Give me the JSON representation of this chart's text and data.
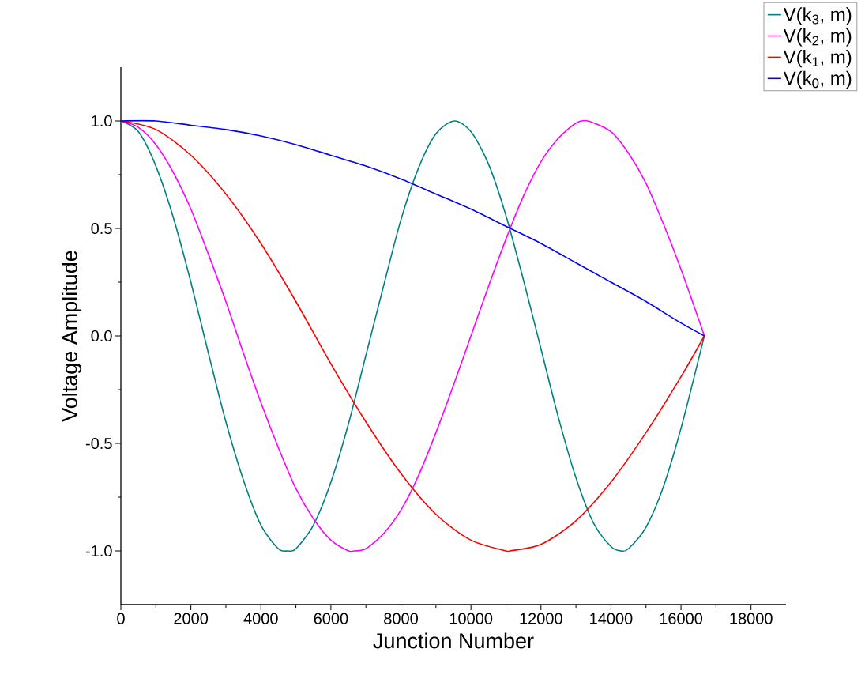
{
  "chart_data": {
    "type": "line",
    "xlabel": "Junction Number",
    "ylabel": "Voltage Amplitude",
    "xlim": [
      0,
      19000
    ],
    "ylim": [
      -1.25,
      1.25
    ],
    "xticks": [
      0,
      2000,
      4000,
      6000,
      8000,
      10000,
      12000,
      14000,
      16000,
      18000
    ],
    "yticks": [
      {
        "value": -1,
        "label": "-1.0"
      },
      {
        "value": -0.5,
        "label": "-0.5"
      },
      {
        "value": 0,
        "label": "0.0"
      },
      {
        "value": 0.5,
        "label": "0.5"
      },
      {
        "value": 1,
        "label": "1.0"
      }
    ],
    "legend": "top right",
    "grid": false,
    "line_style": "solid",
    "series": [
      {
        "name": "V(k$_{3}$, m)",
        "color": "#008080",
        "x": [
          0,
          500,
          1000,
          1500,
          2000,
          2500,
          3000,
          3500,
          4000,
          4500,
          4762,
          5000,
          5500,
          6000,
          6500,
          7000,
          7500,
          8000,
          8500,
          9000,
          9524,
          10000,
          10500,
          11000,
          11500,
          12000,
          12500,
          13000,
          13500,
          14000,
          14286,
          14500,
          15000,
          15500,
          16000,
          16500,
          16667
        ],
        "values": [
          1,
          0.95,
          0.79,
          0.55,
          0.25,
          -0.08,
          -0.4,
          -0.67,
          -0.88,
          -0.99,
          -1,
          -0.99,
          -0.88,
          -0.68,
          -0.41,
          -0.09,
          0.23,
          0.54,
          0.78,
          0.94,
          1,
          0.95,
          0.8,
          0.56,
          0.26,
          -0.06,
          -0.38,
          -0.66,
          -0.87,
          -0.98,
          -1,
          -0.99,
          -0.89,
          -0.7,
          -0.43,
          -0.11,
          0
        ]
      },
      {
        "name": "V(k$_{2}$, m)",
        "color": "#ff00ff",
        "x": [
          0,
          500,
          1000,
          1500,
          2000,
          2500,
          3000,
          3500,
          4000,
          4500,
          5000,
          5500,
          6000,
          6500,
          6667,
          7000,
          7500,
          8000,
          8500,
          9000,
          9500,
          10000,
          10500,
          11000,
          11500,
          12000,
          12500,
          13000,
          13333,
          14000,
          14500,
          15000,
          15500,
          16000,
          16500,
          16667
        ],
        "values": [
          1,
          0.97,
          0.89,
          0.76,
          0.59,
          0.38,
          0.16,
          -0.08,
          -0.31,
          -0.52,
          -0.71,
          -0.85,
          -0.95,
          -1,
          -1,
          -0.99,
          -0.92,
          -0.81,
          -0.65,
          -0.45,
          -0.23,
          0,
          0.23,
          0.45,
          0.65,
          0.81,
          0.92,
          0.99,
          1,
          0.95,
          0.85,
          0.71,
          0.52,
          0.31,
          0.08,
          0
        ]
      },
      {
        "name": "V(k$_{1}$, m)",
        "color": "#ff0000",
        "x": [
          0,
          1000,
          2000,
          3000,
          4000,
          5000,
          6000,
          7000,
          8000,
          9000,
          10000,
          11000,
          11111,
          12000,
          13000,
          14000,
          15000,
          16000,
          16667
        ],
        "values": [
          1,
          0.96,
          0.84,
          0.66,
          0.43,
          0.16,
          -0.13,
          -0.4,
          -0.64,
          -0.83,
          -0.95,
          -1,
          -1,
          -0.97,
          -0.86,
          -0.68,
          -0.45,
          -0.19,
          0
        ]
      },
      {
        "name": "V(k$_{0}$, m)",
        "color": "#0000ff",
        "x": [
          0,
          1000,
          2000,
          3000,
          4000,
          5000,
          6000,
          7000,
          8000,
          9000,
          10000,
          11000,
          12000,
          13000,
          14000,
          15000,
          16000,
          16667
        ],
        "values": [
          1,
          1,
          0.98,
          0.96,
          0.93,
          0.89,
          0.84,
          0.79,
          0.73,
          0.66,
          0.59,
          0.51,
          0.43,
          0.34,
          0.25,
          0.16,
          0.06,
          0
        ]
      }
    ]
  }
}
